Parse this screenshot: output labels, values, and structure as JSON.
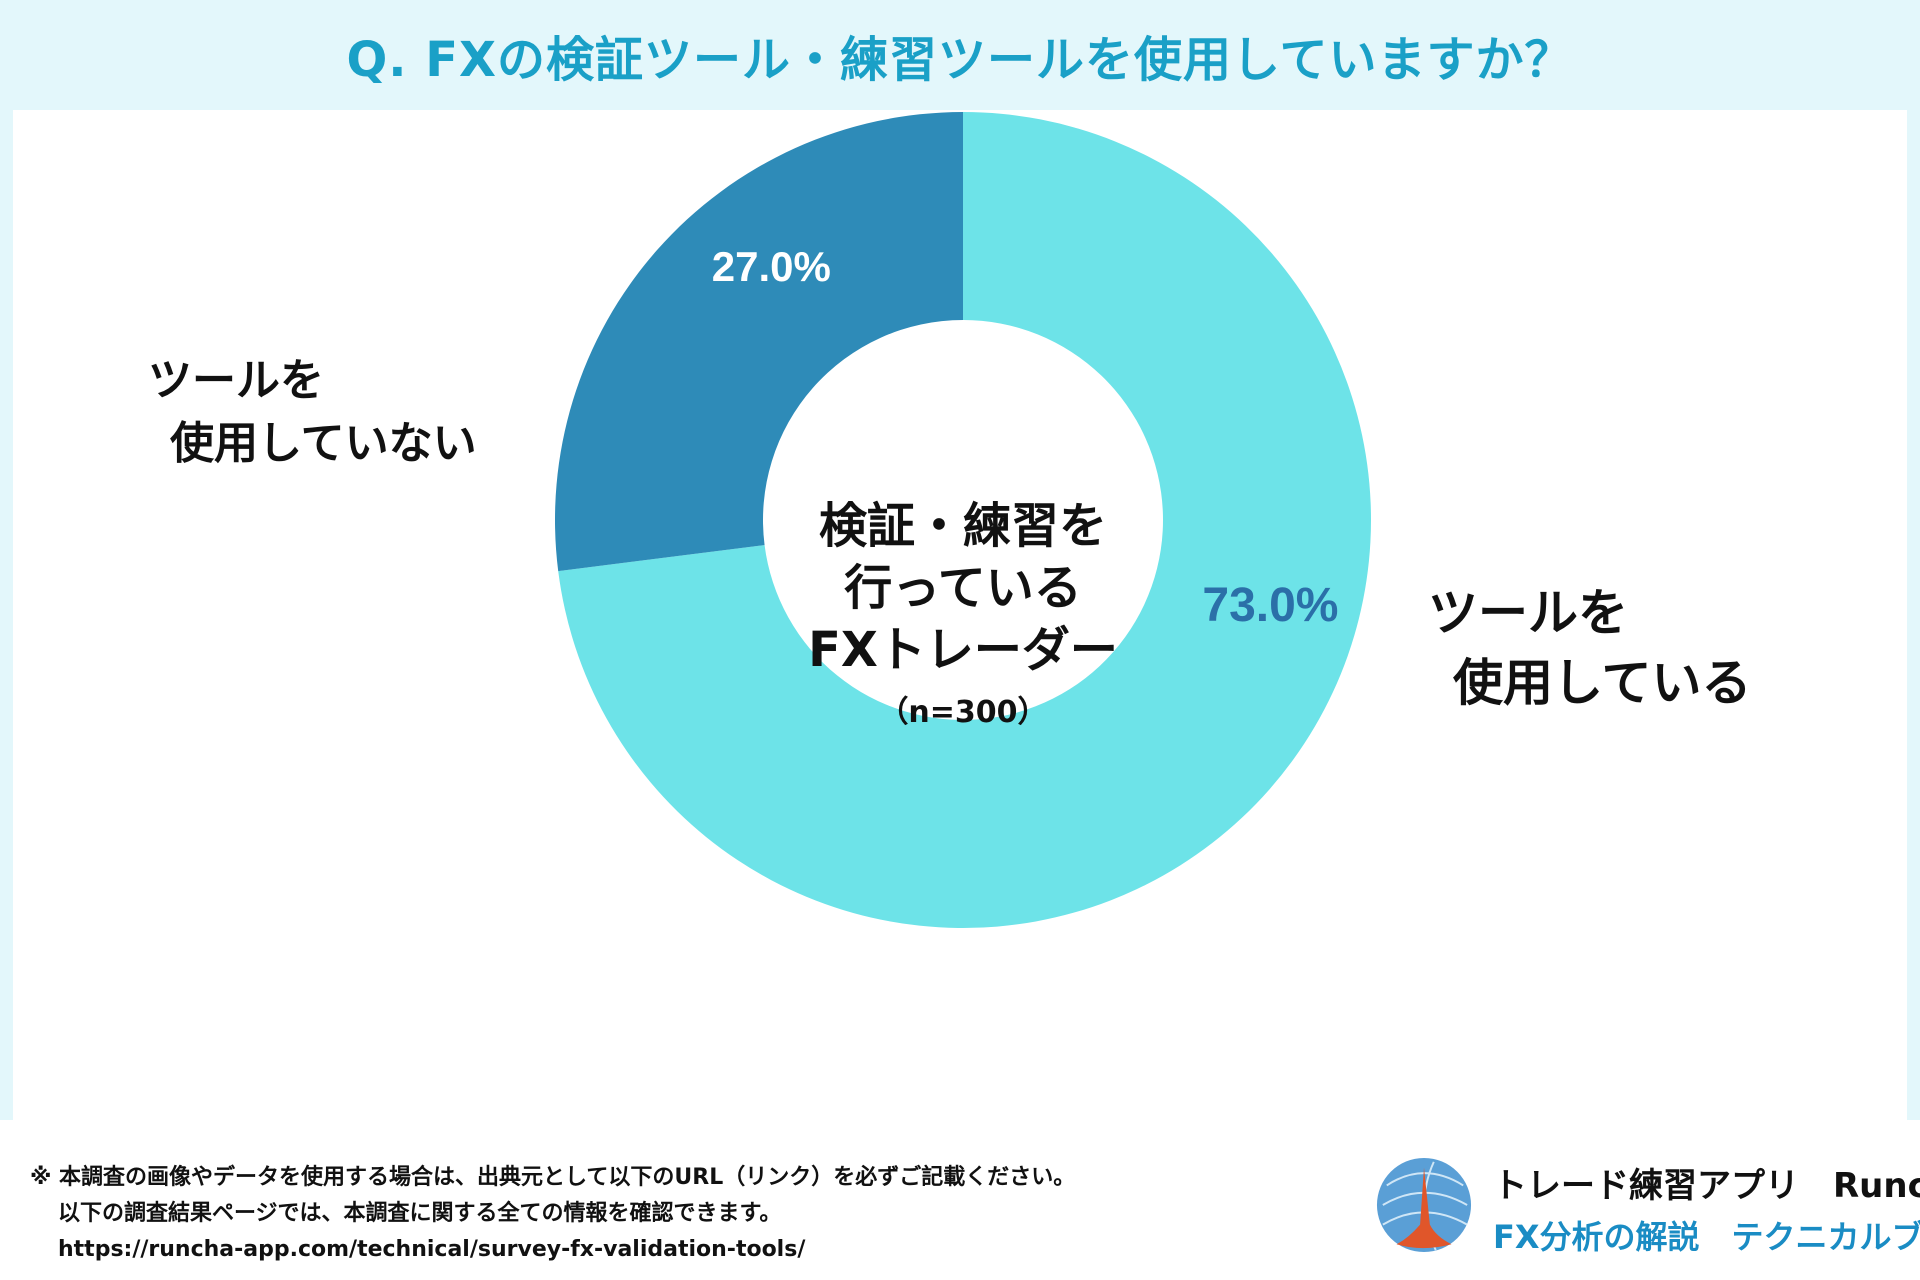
{
  "header": {
    "title": "Q. FXの検証ツール・練習ツールを使用していますか？"
  },
  "chart_data": {
    "type": "pie",
    "variant": "donut",
    "slices": [
      {
        "label_line1": "ツールを",
        "label_line2": "使用している",
        "value": 73.0,
        "value_label": "73.0%",
        "color": "#6de3e8",
        "label_color": "#2b6fa8"
      },
      {
        "label_line1": "ツールを",
        "label_line2": "使用していない",
        "value": 27.0,
        "value_label": "27.0%",
        "color": "#2e8bb8",
        "label_color": "#ffffff"
      }
    ],
    "center": {
      "line1": "検証・練習を",
      "line2": "行っている",
      "line3": "FXトレーダー",
      "n_label": "（n=300）"
    }
  },
  "footer": {
    "note_line1": "※ 本調査の画像やデータを使用する場合は、出典元として以下のURL（リンク）を必ずご記載ください。",
    "note_line2": "以下の調査結果ページでは、本調査に関する全ての情報を確認できます。",
    "note_line3": "https://runcha-app.com/technical/survey-fx-validation-tools/",
    "brand_name": "トレード練習アプリ　Runcha",
    "brand_sub": "FX分析の解説　テクニカルブック"
  }
}
